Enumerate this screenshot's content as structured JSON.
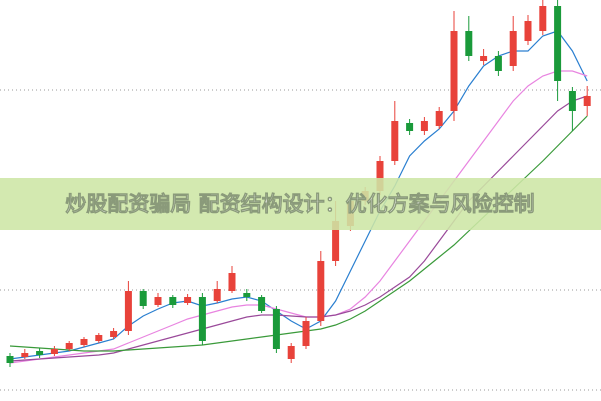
{
  "chart_data": {
    "type": "candlestick",
    "title": "炒股配资骗局 配资结构设计：优化方案与风险控制",
    "ylim": [
      0,
      401
    ],
    "up_color": "#e8423a",
    "down_color": "#1a9a3a",
    "open": [
      45,
      44,
      50,
      47,
      52,
      56,
      60,
      64,
      70,
      110,
      96,
      104,
      98,
      104,
      100,
      110,
      108,
      104,
      92,
      42,
      55,
      80,
      140,
      175,
      200,
      210,
      240,
      278,
      270,
      275,
      290,
      370,
      340,
      345,
      335,
      360,
      370,
      395,
      310,
      295
    ],
    "close": [
      38,
      48,
      46,
      52,
      58,
      62,
      66,
      70,
      110,
      95,
      104,
      96,
      104,
      60,
      112,
      128,
      104,
      90,
      52,
      55,
      80,
      140,
      180,
      200,
      210,
      240,
      280,
      270,
      280,
      290,
      370,
      345,
      345,
      330,
      370,
      380,
      395,
      320,
      290,
      305
    ],
    "high": [
      48,
      52,
      53,
      55,
      60,
      64,
      68,
      73,
      120,
      112,
      108,
      106,
      107,
      108,
      120,
      135,
      112,
      106,
      95,
      58,
      84,
      150,
      200,
      205,
      214,
      245,
      300,
      282,
      284,
      294,
      390,
      385,
      352,
      350,
      385,
      386,
      401,
      401,
      314,
      315
    ],
    "low": [
      34,
      42,
      43,
      45,
      50,
      54,
      58,
      62,
      66,
      92,
      94,
      93,
      96,
      56,
      98,
      108,
      100,
      88,
      48,
      38,
      52,
      75,
      135,
      170,
      196,
      206,
      236,
      266,
      266,
      272,
      280,
      340,
      336,
      325,
      330,
      356,
      366,
      300,
      270,
      285
    ],
    "series": [
      {
        "color": "#2a7fd0",
        "values": [
          42,
          44,
          46,
          48,
          50,
          54,
          58,
          62,
          75,
          85,
          92,
          98,
          100,
          95,
          98,
          102,
          104,
          100,
          90,
          80,
          72,
          80,
          100,
          130,
          160,
          190,
          215,
          245,
          260,
          272,
          290,
          315,
          335,
          345,
          350,
          350,
          365,
          370,
          350,
          320
        ]
      },
      {
        "color": "#e884e0",
        "values": [
          38,
          40,
          42,
          44,
          46,
          48,
          50,
          52,
          58,
          64,
          70,
          76,
          82,
          86,
          90,
          94,
          96,
          96,
          92,
          88,
          84,
          84,
          86,
          92,
          104,
          120,
          140,
          160,
          180,
          200,
          220,
          240,
          260,
          280,
          300,
          315,
          325,
          330,
          330,
          325
        ]
      },
      {
        "color": "#9a4a9a",
        "values": [
          40,
          41,
          42,
          43,
          44,
          45,
          46,
          48,
          52,
          56,
          60,
          64,
          68,
          72,
          76,
          80,
          84,
          86,
          86,
          85,
          84,
          84,
          86,
          90,
          96,
          104,
          114,
          124,
          140,
          160,
          180,
          200,
          215,
          230,
          245,
          260,
          275,
          290,
          300,
          305
        ]
      },
      {
        "color": "#3a9a3a",
        "values": [
          55,
          54,
          53,
          52,
          51,
          50,
          50,
          50,
          51,
          52,
          53,
          54,
          55,
          56,
          58,
          60,
          62,
          64,
          66,
          68,
          70,
          72,
          76,
          82,
          90,
          100,
          110,
          120,
          132,
          144,
          156,
          170,
          184,
          198,
          212,
          226,
          240,
          255,
          270,
          285
        ]
      }
    ]
  }
}
